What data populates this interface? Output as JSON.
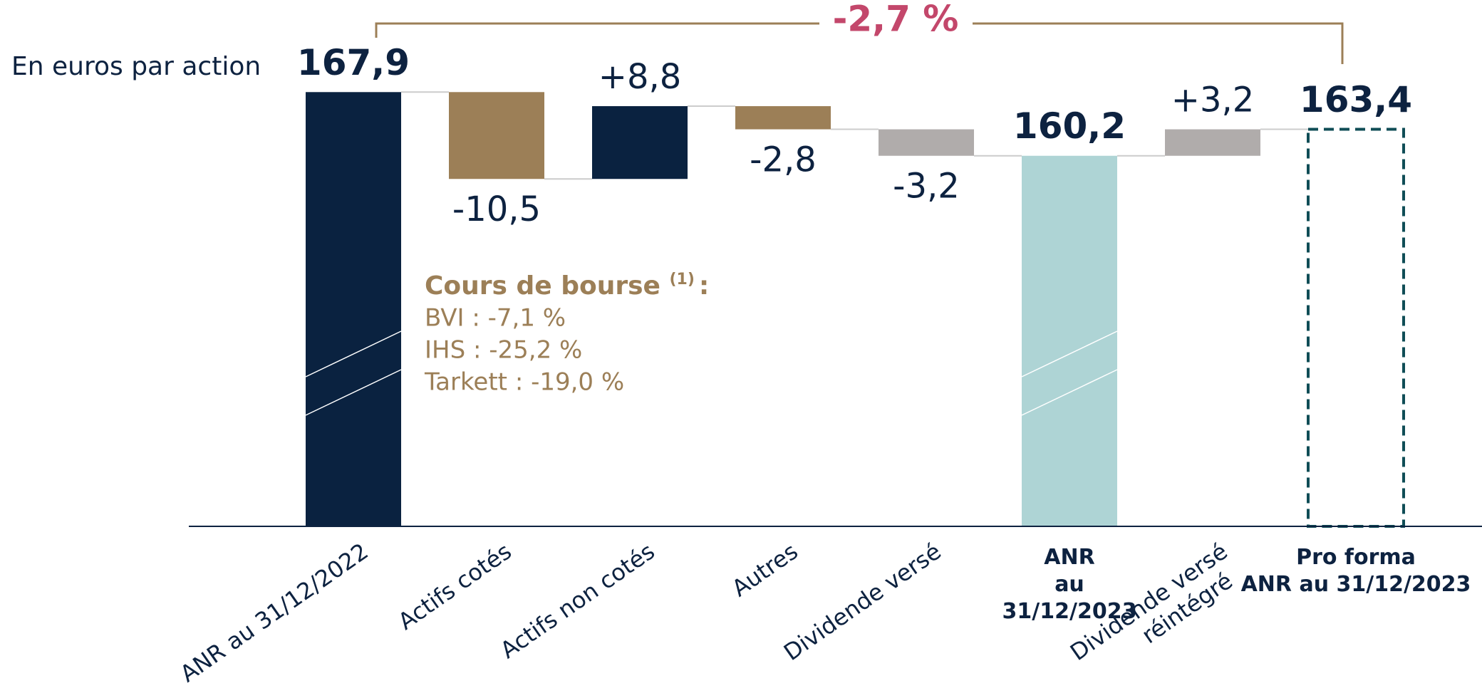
{
  "chart_data": {
    "type": "waterfall",
    "subtitle": "En euros par action",
    "categories": [
      "ANR au 31/12/2022",
      "Actifs cotés",
      "Actifs non cotés",
      "Autres",
      "Dividende versé",
      [
        "ANR",
        "au",
        "31/12/2023"
      ],
      [
        "Dividende versé",
        "réintégré"
      ],
      [
        "Pro forma",
        "ANR au 31/12/2023"
      ]
    ],
    "values": [
      167.9,
      -10.5,
      8.8,
      -2.8,
      -3.2,
      160.2,
      3.2,
      163.4
    ],
    "value_labels": [
      "167,9",
      "-10,5",
      "+8,8",
      "-2,8",
      "-3,2",
      "160,2",
      "+3,2",
      "163,4"
    ],
    "is_total": [
      true,
      false,
      false,
      false,
      false,
      true,
      false,
      true
    ],
    "colors": [
      "#0a2240",
      "#9c7f57",
      "#0a2240",
      "#9c7f57",
      "#b0acab",
      "#aed4d5",
      "#b0acab",
      "#0f4d56"
    ],
    "bar_styles": [
      "fill",
      "fill",
      "fill",
      "fill",
      "fill",
      "fill",
      "fill",
      "dashed"
    ],
    "axis_break": true,
    "ylim": [
      115.4,
      178
    ],
    "change_label": "-2,7 %",
    "annotation": {
      "title": "Cours de bourse",
      "note": "(1)",
      "separator": ":",
      "lines": [
        "BVI : -7,1 %",
        "IHS : -25,2 %",
        "Tarkett : -19,0 %"
      ]
    }
  }
}
